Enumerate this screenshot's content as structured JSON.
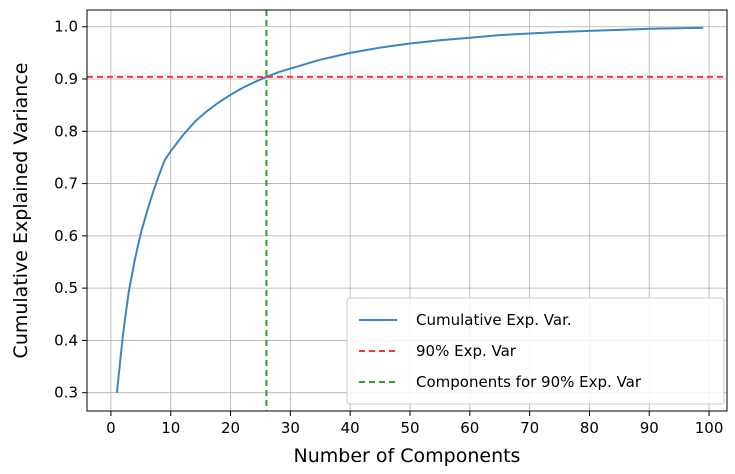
{
  "chart_data": {
    "type": "line",
    "xlabel": "Number of Components",
    "ylabel": "Cumulative Explained Variance",
    "xlim": [
      -4,
      103
    ],
    "ylim": [
      0.265,
      1.032
    ],
    "xticks": [
      0,
      10,
      20,
      30,
      40,
      50,
      60,
      70,
      80,
      90,
      100
    ],
    "yticks": [
      0.3,
      0.4,
      0.5,
      0.6,
      0.7,
      0.8,
      0.9,
      1.0
    ],
    "xtick_labels": [
      "0",
      "10",
      "20",
      "30",
      "40",
      "50",
      "60",
      "70",
      "80",
      "90",
      "100"
    ],
    "ytick_labels": [
      "0.3",
      "0.4",
      "0.5",
      "0.6",
      "0.7",
      "0.8",
      "0.9",
      "1.0"
    ],
    "grid": true,
    "legend_position": "bottom-right",
    "series": [
      {
        "name": "Cumulative Exp. Var.",
        "color": "#3b85c4",
        "x": [
          1,
          2,
          3,
          4,
          5,
          6,
          7,
          8,
          9,
          10,
          12,
          14,
          16,
          18,
          20,
          22,
          24,
          26,
          28,
          30,
          35,
          40,
          45,
          50,
          55,
          60,
          65,
          70,
          75,
          80,
          85,
          90,
          95,
          99
        ],
        "y": [
          0.3,
          0.41,
          0.495,
          0.555,
          0.605,
          0.645,
          0.682,
          0.715,
          0.745,
          0.762,
          0.792,
          0.818,
          0.838,
          0.855,
          0.87,
          0.883,
          0.894,
          0.904,
          0.913,
          0.92,
          0.937,
          0.95,
          0.96,
          0.968,
          0.974,
          0.979,
          0.984,
          0.987,
          0.99,
          0.992,
          0.994,
          0.996,
          0.997,
          0.998
        ]
      },
      {
        "name": "90% Exp. Var",
        "color": "#ff3333",
        "style": "dashed",
        "orientation": "horizontal",
        "value": 0.904
      },
      {
        "name": "Components for 90% Exp. Var",
        "color": "#2ca02c",
        "style": "dashed",
        "orientation": "vertical",
        "value": 26
      }
    ]
  }
}
